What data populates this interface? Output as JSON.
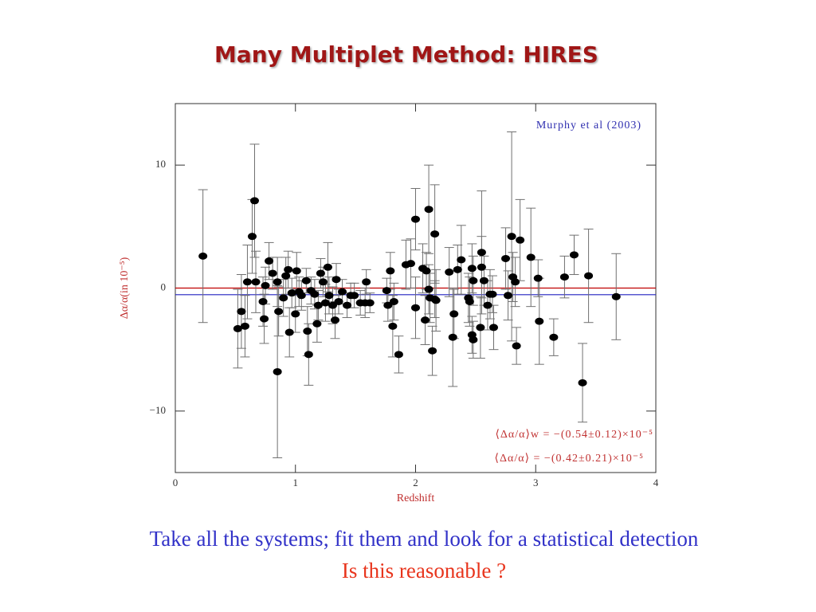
{
  "slide": {
    "title": "Many Multiplet Method: HIRES",
    "captions": [
      {
        "text": "Take all the systems; fit them and look for a statistical detection",
        "color": "#3232c8"
      },
      {
        "text": "Is this reasonable ?",
        "color": "#e8341c"
      }
    ]
  },
  "chart_data": {
    "type": "scatter",
    "x_label": "Redshift",
    "y_label": "Δα/α(in 10⁻⁵)",
    "annotations": [
      {
        "text": "Murphy et al (2003)",
        "color": "#3030b0"
      },
      {
        "text": "⟨Δα/α⟩w = −(0.54±0.12)×10⁻⁵",
        "color": "#c03030"
      },
      {
        "text": "⟨Δα/α⟩ = −(0.42±0.21)×10⁻⁵",
        "color": "#c03030"
      }
    ],
    "hlines": [
      {
        "value": 0,
        "color": "#c00000"
      },
      {
        "value": -0.54,
        "color": "#2020c0"
      }
    ],
    "xlim": [
      0,
      4
    ],
    "ylim": [
      -15,
      15
    ],
    "xticks": [
      0,
      1,
      2,
      3,
      4
    ],
    "yticks": [
      {
        "value": -10,
        "label": "−10"
      },
      0,
      10
    ],
    "color": "#000000",
    "errcolor": "#707070",
    "x": [
      0.23,
      0.52,
      0.55,
      0.58,
      0.6,
      0.64,
      0.66,
      0.67,
      0.73,
      0.74,
      0.75,
      0.78,
      0.81,
      0.85,
      0.85,
      0.86,
      0.9,
      0.92,
      0.94,
      0.95,
      0.97,
      1.0,
      1.01,
      1.03,
      1.05,
      1.09,
      1.1,
      1.11,
      1.13,
      1.16,
      1.18,
      1.19,
      1.21,
      1.23,
      1.25,
      1.27,
      1.28,
      1.31,
      1.33,
      1.34,
      1.36,
      1.39,
      1.43,
      1.46,
      1.49,
      1.54,
      1.58,
      1.59,
      1.62,
      1.76,
      1.77,
      1.79,
      1.81,
      1.82,
      1.86,
      1.92,
      1.96,
      2.0,
      2.0,
      2.06,
      2.08,
      2.09,
      2.11,
      2.11,
      2.12,
      2.14,
      2.16,
      2.16,
      2.17,
      2.28,
      2.31,
      2.32,
      2.35,
      2.38,
      2.44,
      2.45,
      2.47,
      2.47,
      2.48,
      2.48,
      2.54,
      2.55,
      2.55,
      2.57,
      2.6,
      2.62,
      2.64,
      2.65,
      2.75,
      2.77,
      2.8,
      2.81,
      2.83,
      2.84,
      2.87,
      2.96,
      3.02,
      3.03,
      3.15,
      3.24,
      3.32,
      3.39,
      3.44,
      3.67
    ],
    "y": [
      2.6,
      -3.3,
      -1.9,
      -3.1,
      0.5,
      4.2,
      7.1,
      0.5,
      -1.1,
      -2.5,
      0.2,
      2.2,
      1.2,
      -6.8,
      0.5,
      -1.9,
      -0.8,
      1.0,
      1.5,
      -3.6,
      -0.4,
      -2.1,
      1.4,
      -0.3,
      -0.6,
      0.6,
      -3.5,
      -5.4,
      -0.2,
      -0.5,
      -2.9,
      -1.4,
      1.2,
      0.5,
      -1.2,
      1.7,
      -0.6,
      -1.4,
      -2.6,
      0.7,
      -1.1,
      -0.3,
      -1.4,
      -0.6,
      -0.6,
      -1.2,
      -1.2,
      0.5,
      -1.2,
      -0.2,
      -1.4,
      1.4,
      -3.1,
      -1.1,
      -5.4,
      1.9,
      2.0,
      5.6,
      -1.6,
      1.6,
      -2.6,
      1.4,
      6.4,
      -0.1,
      -0.8,
      -5.1,
      4.4,
      -0.9,
      -1.0,
      1.3,
      -4.0,
      -2.1,
      1.5,
      2.3,
      -0.8,
      -1.1,
      -3.8,
      1.6,
      0.6,
      -4.2,
      -3.2,
      2.9,
      1.7,
      0.6,
      -1.4,
      -0.5,
      -0.5,
      -3.2,
      2.4,
      -0.6,
      4.2,
      0.9,
      0.5,
      -4.7,
      3.9,
      2.5,
      0.8,
      -2.7,
      -4.0,
      0.9,
      2.7,
      -7.7,
      1.0,
      -0.7
    ],
    "yerr": [
      5.4,
      3.2,
      3,
      2.5,
      3,
      3,
      4.6,
      2.5,
      2,
      2,
      1.5,
      1.5,
      1.3,
      7,
      2,
      2,
      1.5,
      1.5,
      1.5,
      2,
      1.2,
      1.5,
      1.5,
      1.2,
      1.2,
      1,
      2,
      2.5,
      1.1,
      1.2,
      1.5,
      1.2,
      1.2,
      1.2,
      1.5,
      2,
      1.5,
      1.5,
      1.5,
      1.3,
      1,
      1,
      1,
      1,
      1,
      1,
      1.2,
      1,
      0.8,
      1,
      1.3,
      1.5,
      2.5,
      1.5,
      1.5,
      2,
      2,
      2.5,
      2.5,
      2,
      2,
      1.5,
      3.6,
      2,
      2,
      2,
      4,
      1.5,
      2.5,
      2,
      4,
      2,
      2,
      2.8,
      2,
      2,
      1.5,
      2,
      2,
      1.5,
      2.5,
      5,
      2.5,
      2,
      2,
      2,
      1.5,
      1.8,
      2.5,
      2,
      8.5,
      2,
      2,
      1.5,
      3.3,
      4,
      1.5,
      3.5,
      1.5,
      1.7,
      1.6,
      3.2,
      3.8,
      3.5
    ]
  }
}
